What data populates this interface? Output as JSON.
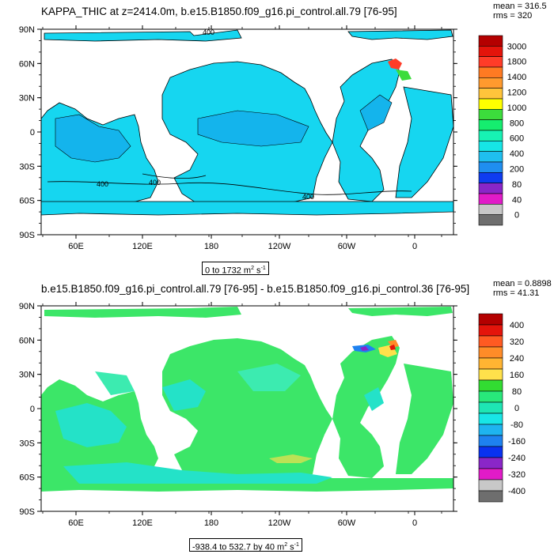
{
  "panels": [
    {
      "title": "KAPPA_THIC at z=2414.0m, b.e15.B1850.f09_g16.pi_control.all.79 [76-95]",
      "stats": {
        "mean": "mean = 316.5",
        "rms": "rms = 320"
      },
      "range": {
        "text": "0 to 1732 m",
        "sup": "2",
        "tail": " s",
        "sup2": "-1"
      },
      "lat_ticks": [
        "90N",
        "60N",
        "30N",
        "0",
        "30S",
        "60S",
        "90S"
      ],
      "lon_ticks": [
        "60E",
        "120E",
        "180",
        "120W",
        "60W",
        "0"
      ],
      "contour_labels": [
        "400",
        "400",
        "400",
        "400"
      ],
      "colorbar": {
        "labels": [
          "3000",
          "1800",
          "1400",
          "1200",
          "1000",
          "800",
          "600",
          "400",
          "200",
          "80",
          "40",
          "0"
        ],
        "colors": [
          "#b40000",
          "#e4140b",
          "#ff3c28",
          "#ff7a22",
          "#ff9a2e",
          "#ffc43b",
          "#ffff00",
          "#3cdc3c",
          "#15ed6f",
          "#17f2b4",
          "#16e6e6",
          "#1fbff0",
          "#1f8ef0",
          "#0f3cf0",
          "#8a26c8",
          "#e11bc8",
          "#c8c8c8",
          "#6e6e6e"
        ]
      },
      "colors": {
        "ocean": "#16d6f0",
        "deep": "#14b4ec",
        "line": "#000000"
      }
    },
    {
      "title": "b.e15.B1850.f09_g16.pi_control.all.79 [76-95] - b.e15.B1850.f09_g16.pi_control.36 [76-95]",
      "stats": {
        "mean": "mean = 0.8898",
        "rms": "rms = 41.31"
      },
      "range": {
        "text": "-938.4 to 532.7 by 40 m",
        "sup": "2",
        "tail": " s",
        "sup2": "-1"
      },
      "lat_ticks": [
        "90N",
        "60N",
        "30N",
        "0",
        "30S",
        "60S",
        "90S"
      ],
      "lon_ticks": [
        "60E",
        "120E",
        "180",
        "120W",
        "60W",
        "0"
      ],
      "colorbar": {
        "labels": [
          "400",
          "320",
          "240",
          "160",
          "80",
          "0",
          "-80",
          "-160",
          "-240",
          "-320",
          "-400"
        ],
        "colors": [
          "#b40000",
          "#e4140b",
          "#ff5a22",
          "#ff8c28",
          "#ffb432",
          "#ffe14b",
          "#32dc32",
          "#28e87a",
          "#1ee6b4",
          "#18e6e6",
          "#1eb4f0",
          "#1e82f0",
          "#0a32f0",
          "#8a26c8",
          "#e11bc8",
          "#c8c8c8",
          "#6e6e6e"
        ]
      },
      "colors": {
        "ocean": "#3ce668",
        "cyan": "#24e2c8",
        "teal": "#3cebb0"
      }
    }
  ]
}
